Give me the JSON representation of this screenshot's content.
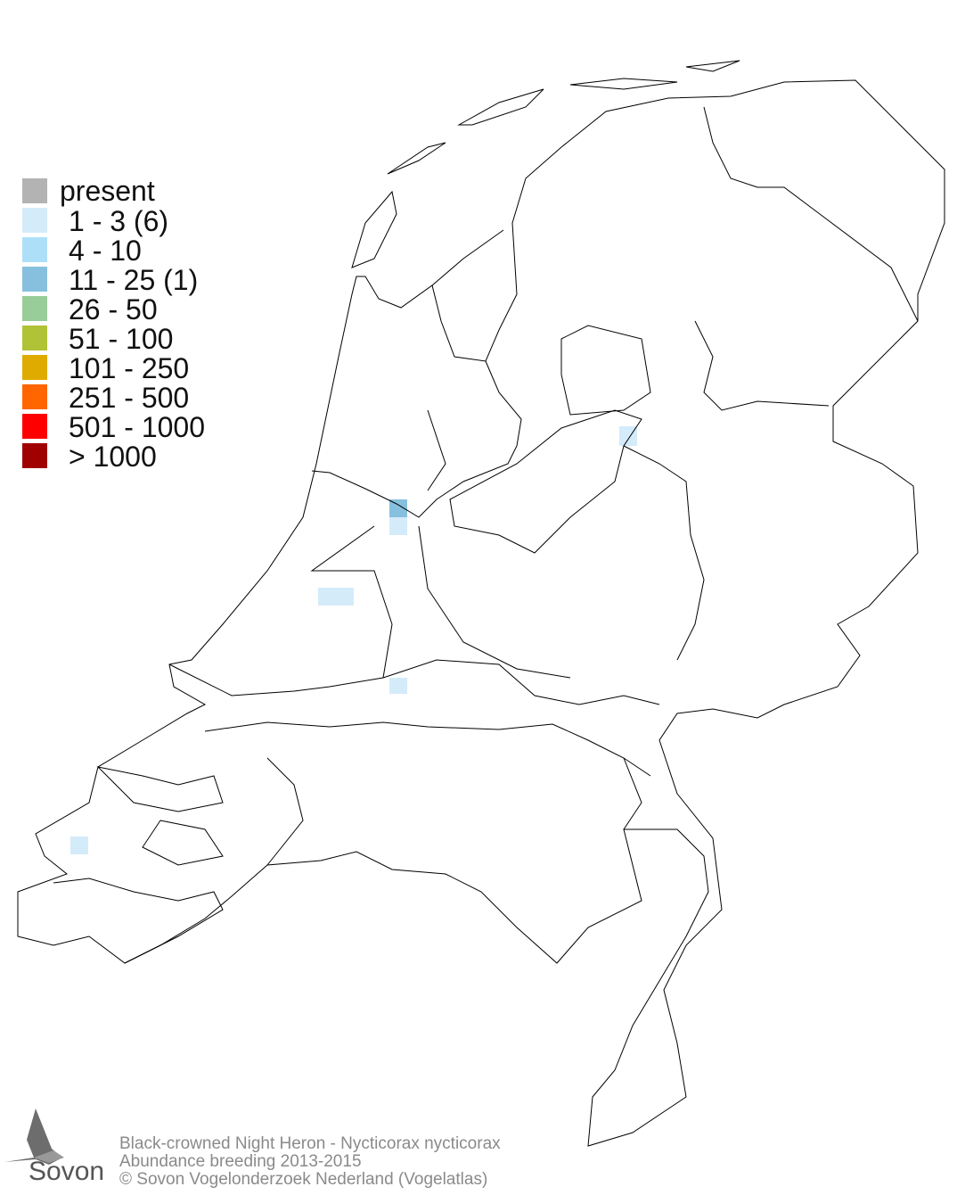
{
  "legend": {
    "items": [
      {
        "label": "present",
        "color": "#b3b3b3"
      },
      {
        "label": "1 - 3 (6)",
        "color": "#d4ebfa"
      },
      {
        "label": "4 - 10",
        "color": "#ade0f8"
      },
      {
        "label": "11 - 25 (1)",
        "color": "#87c0de"
      },
      {
        "label": "26 - 50",
        "color": "#98cc98"
      },
      {
        "label": "51 - 100",
        "color": "#b0c236"
      },
      {
        "label": "101 - 250",
        "color": "#e0ab00"
      },
      {
        "label": "251 - 500",
        "color": "#ff6600"
      },
      {
        "label": "501 - 1000",
        "color": "#ff0000"
      },
      {
        "label": "> 1000",
        "color": "#a00000"
      }
    ]
  },
  "cells": [
    {
      "category": 3
    },
    {
      "category": 1
    },
    {
      "category": 1
    },
    {
      "category": 1
    },
    {
      "category": 1
    },
    {
      "category": 1
    },
    {
      "category": 1
    }
  ],
  "caption": {
    "line1": "Black-crowned Night Heron - Nycticorax nycticorax",
    "line2": "Abundance breeding 2013-2015",
    "line3": "© Sovon Vogelonderzoek Nederland (Vogelatlas)"
  },
  "logo": {
    "text": "Sovon"
  }
}
